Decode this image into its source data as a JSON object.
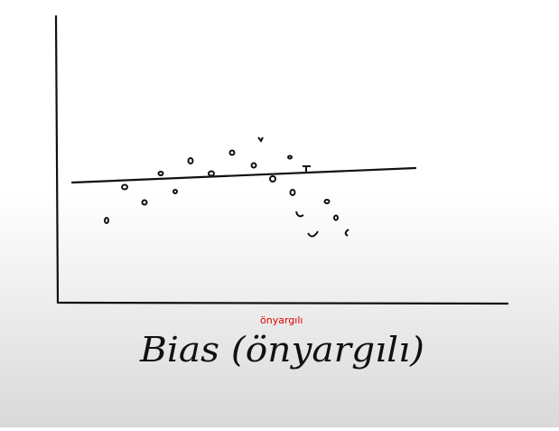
{
  "annotation": "önyargılı",
  "label": "Bias (önyargılı)"
}
